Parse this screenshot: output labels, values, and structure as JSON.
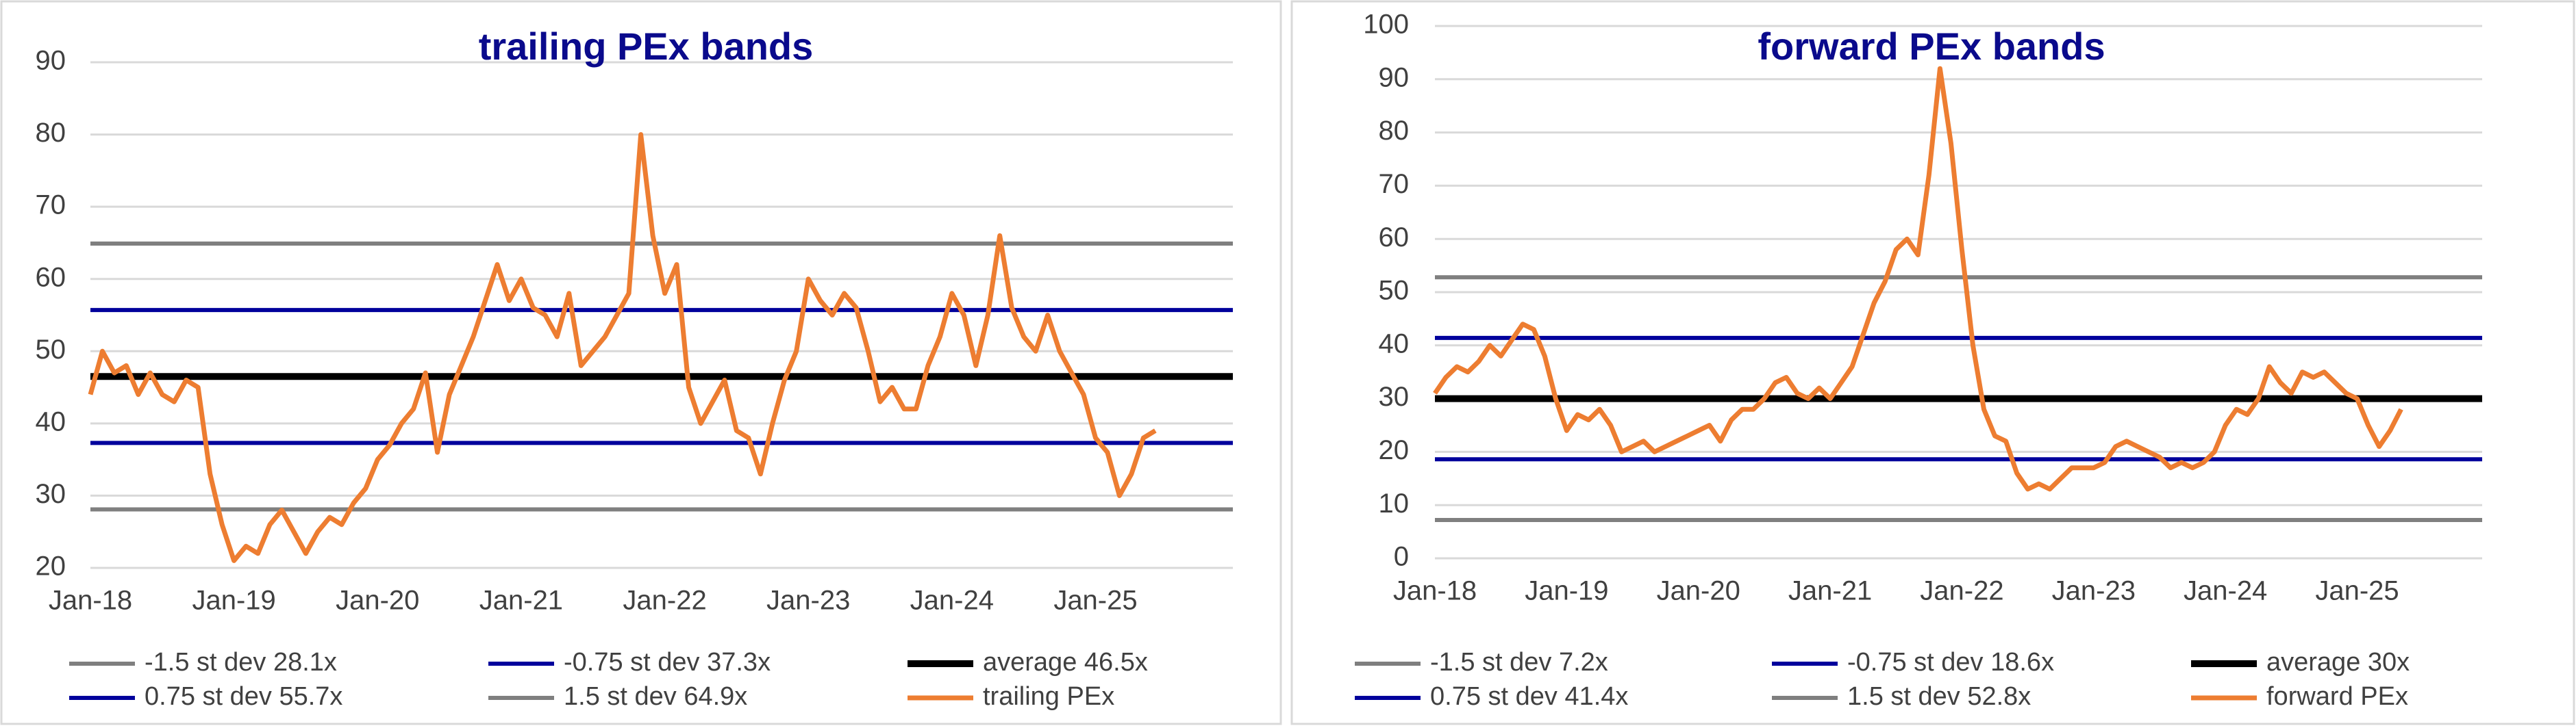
{
  "chart_data": [
    {
      "type": "line",
      "title": "trailing PEx bands",
      "categories": [
        "Jan-18",
        null,
        null,
        null,
        null,
        null,
        null,
        null,
        null,
        null,
        null,
        null,
        "Jan-19",
        null,
        null,
        null,
        null,
        null,
        null,
        null,
        null,
        null,
        null,
        null,
        "Jan-20",
        null,
        null,
        null,
        null,
        null,
        null,
        null,
        null,
        null,
        null,
        null,
        "Jan-21",
        null,
        null,
        null,
        null,
        null,
        null,
        null,
        null,
        null,
        null,
        null,
        "Jan-22",
        null,
        null,
        null,
        null,
        null,
        null,
        null,
        null,
        null,
        null,
        null,
        "Jan-23",
        null,
        null,
        null,
        null,
        null,
        null,
        null,
        null,
        null,
        null,
        null,
        "Jan-24",
        null,
        null,
        null,
        null,
        null,
        null,
        null,
        null,
        null,
        null,
        null,
        "Jan-25",
        null,
        null,
        null,
        null,
        null
      ],
      "series": [
        {
          "name": "trailing PEx",
          "color": "#ed7d31",
          "values": [
            44,
            50,
            47,
            48,
            44,
            47,
            44,
            43,
            46,
            45,
            33,
            26,
            21,
            23,
            22,
            26,
            28,
            25,
            22,
            25,
            27,
            26,
            29,
            31,
            35,
            37,
            40,
            42,
            47,
            36,
            44,
            48,
            52,
            57,
            62,
            57,
            60,
            56,
            55,
            52,
            58,
            48,
            50,
            52,
            55,
            58,
            80,
            66,
            58,
            62,
            45,
            40,
            43,
            46,
            39,
            38,
            33,
            40,
            46,
            50,
            60,
            57,
            55,
            58,
            56,
            50,
            43,
            45,
            42,
            42,
            48,
            52,
            58,
            55,
            48,
            55,
            66,
            56,
            52,
            50,
            55,
            50,
            47,
            44,
            38,
            36,
            30,
            33,
            38,
            39
          ]
        }
      ],
      "bands": [
        {
          "name": "-1.5 st dev 28.1x",
          "value": 28.1,
          "color": "#7f7f7f"
        },
        {
          "name": "-0.75 st dev 37.3x",
          "value": 37.3,
          "color": "#00009c"
        },
        {
          "name": "average 46.5x",
          "value": 46.5,
          "color": "#000000"
        },
        {
          "name": "0.75 st dev 55.7x",
          "value": 55.7,
          "color": "#00009c"
        },
        {
          "name": "1.5 st dev 64.9x",
          "value": 64.9,
          "color": "#7f7f7f"
        }
      ],
      "ylim": [
        20,
        90
      ],
      "yticks": [
        20,
        30,
        40,
        50,
        60,
        70,
        80,
        90
      ],
      "grid": true
    },
    {
      "type": "line",
      "title": "forward PEx bands",
      "categories": [
        "Jan-18",
        null,
        null,
        null,
        null,
        null,
        null,
        null,
        null,
        null,
        null,
        null,
        "Jan-19",
        null,
        null,
        null,
        null,
        null,
        null,
        null,
        null,
        null,
        null,
        null,
        "Jan-20",
        null,
        null,
        null,
        null,
        null,
        null,
        null,
        null,
        null,
        null,
        null,
        "Jan-21",
        null,
        null,
        null,
        null,
        null,
        null,
        null,
        null,
        null,
        null,
        null,
        "Jan-22",
        null,
        null,
        null,
        null,
        null,
        null,
        null,
        null,
        null,
        null,
        null,
        "Jan-23",
        null,
        null,
        null,
        null,
        null,
        null,
        null,
        null,
        null,
        null,
        null,
        "Jan-24",
        null,
        null,
        null,
        null,
        null,
        null,
        null,
        null,
        null,
        null,
        null,
        "Jan-25",
        null,
        null,
        null,
        null
      ],
      "series": [
        {
          "name": "forward PEx",
          "color": "#ed7d31",
          "values": [
            31,
            34,
            36,
            35,
            37,
            40,
            38,
            41,
            44,
            43,
            38,
            30,
            24,
            27,
            26,
            28,
            25,
            20,
            21,
            22,
            20,
            21,
            22,
            23,
            24,
            25,
            22,
            26,
            28,
            28,
            30,
            33,
            34,
            31,
            30,
            32,
            30,
            33,
            36,
            42,
            48,
            52,
            58,
            60,
            57,
            72,
            92,
            78,
            58,
            40,
            28,
            23,
            22,
            16,
            13,
            14,
            13,
            15,
            17,
            17,
            17,
            18,
            21,
            22,
            21,
            20,
            19,
            17,
            18,
            17,
            18,
            20,
            25,
            28,
            27,
            30,
            36,
            33,
            31,
            35,
            34,
            35,
            33,
            31,
            30,
            25,
            21,
            24,
            28
          ]
        }
      ],
      "bands": [
        {
          "name": "-1.5 st dev 7.2x",
          "value": 7.2,
          "color": "#7f7f7f"
        },
        {
          "name": "-0.75 st dev 18.6x",
          "value": 18.6,
          "color": "#00009c"
        },
        {
          "name": "average 30x",
          "value": 30,
          "color": "#000000"
        },
        {
          "name": "0.75 st dev 41.4x",
          "value": 41.4,
          "color": "#00009c"
        },
        {
          "name": "1.5 st dev 52.8x",
          "value": 52.8,
          "color": "#7f7f7f"
        }
      ],
      "ylim": [
        0,
        100
      ],
      "yticks": [
        0,
        10,
        20,
        30,
        40,
        50,
        60,
        70,
        80,
        90,
        100
      ],
      "grid": true
    }
  ]
}
